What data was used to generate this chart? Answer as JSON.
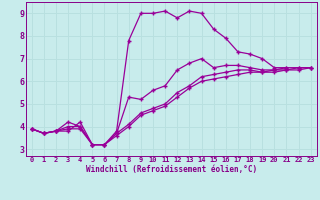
{
  "xlabel": "Windchill (Refroidissement éolien,°C)",
  "bg_color": "#c8ecec",
  "line_color": "#990099",
  "grid_color": "#b8e0e0",
  "xlim": [
    -0.5,
    23.5
  ],
  "ylim": [
    2.7,
    9.5
  ],
  "xticks": [
    0,
    1,
    2,
    3,
    4,
    5,
    6,
    7,
    8,
    9,
    10,
    11,
    12,
    13,
    14,
    15,
    16,
    17,
    18,
    19,
    20,
    21,
    22,
    23
  ],
  "yticks": [
    3,
    4,
    5,
    6,
    7,
    8,
    9
  ],
  "line1_x": [
    0,
    1,
    2,
    3,
    4,
    5,
    6,
    7,
    8,
    9,
    10,
    11,
    12,
    13,
    14,
    15,
    16,
    17,
    18,
    19,
    20,
    21
  ],
  "line1_y": [
    3.9,
    3.7,
    3.8,
    3.8,
    4.2,
    3.2,
    3.2,
    3.8,
    7.8,
    9.0,
    9.0,
    9.1,
    8.8,
    9.1,
    9.0,
    8.3,
    7.9,
    7.3,
    7.2,
    7.0,
    6.6,
    6.6
  ],
  "line2_x": [
    0,
    1,
    2,
    3,
    4,
    5,
    6,
    7,
    8,
    9,
    10,
    11,
    12,
    13,
    14,
    15,
    16,
    17,
    18,
    19,
    20,
    21,
    22,
    23
  ],
  "line2_y": [
    3.9,
    3.7,
    3.8,
    4.2,
    4.0,
    3.2,
    3.2,
    3.7,
    5.3,
    5.2,
    5.6,
    5.8,
    6.5,
    6.8,
    7.0,
    6.6,
    6.7,
    6.7,
    6.6,
    6.5,
    6.5,
    6.6,
    6.6,
    6.6
  ],
  "line3_x": [
    0,
    1,
    2,
    3,
    4,
    5,
    6,
    7,
    8,
    9,
    10,
    11,
    12,
    13,
    14,
    15,
    16,
    17,
    18,
    19,
    20,
    21,
    22,
    23
  ],
  "line3_y": [
    3.9,
    3.7,
    3.8,
    4.0,
    4.0,
    3.2,
    3.2,
    3.7,
    4.1,
    4.6,
    4.8,
    5.0,
    5.5,
    5.8,
    6.2,
    6.3,
    6.4,
    6.5,
    6.5,
    6.4,
    6.5,
    6.5,
    6.6,
    6.6
  ],
  "line4_x": [
    0,
    1,
    2,
    3,
    4,
    5,
    6,
    7,
    8,
    9,
    10,
    11,
    12,
    13,
    14,
    15,
    16,
    17,
    18,
    19,
    20,
    21,
    22,
    23
  ],
  "line4_y": [
    3.9,
    3.7,
    3.8,
    3.9,
    3.9,
    3.2,
    3.2,
    3.6,
    4.0,
    4.5,
    4.7,
    4.9,
    5.3,
    5.7,
    6.0,
    6.1,
    6.2,
    6.3,
    6.4,
    6.4,
    6.4,
    6.5,
    6.5,
    6.6
  ]
}
